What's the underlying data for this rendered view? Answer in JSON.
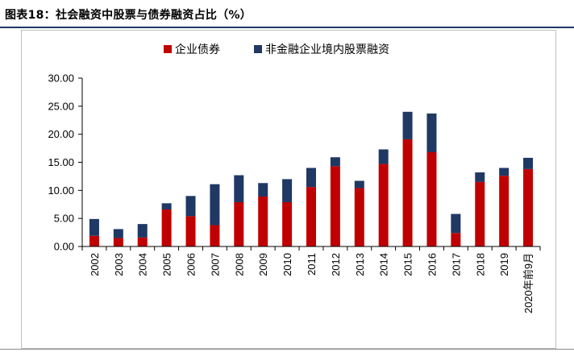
{
  "figure_title": "图表18：社会融资中股票与债券融资占比（%）",
  "colors": {
    "corporate_bonds": "#c00000",
    "equity": "#1f3864",
    "axis": "#000000"
  },
  "chart_data": {
    "type": "bar",
    "stacked": true,
    "categories": [
      "2002",
      "2003",
      "2004",
      "2005",
      "2006",
      "2007",
      "2008",
      "2009",
      "2010",
      "2011",
      "2012",
      "2013",
      "2014",
      "2015",
      "2016",
      "2017",
      "2018",
      "2019",
      "2020年前9月"
    ],
    "series": [
      {
        "name": "企业债券",
        "values": [
          1.9,
          1.5,
          1.6,
          6.6,
          5.4,
          3.8,
          7.9,
          8.9,
          7.9,
          10.6,
          14.3,
          10.4,
          14.7,
          19.1,
          16.8,
          2.4,
          11.5,
          12.6,
          13.8
        ]
      },
      {
        "name": "非金融企业境内股票融资",
        "values": [
          3.0,
          1.6,
          2.4,
          1.1,
          3.6,
          7.3,
          4.8,
          2.4,
          4.1,
          3.4,
          1.6,
          1.3,
          2.6,
          4.9,
          6.9,
          3.4,
          1.7,
          1.4,
          2.0
        ]
      }
    ],
    "ylim": [
      0,
      30
    ],
    "yticks": [
      "0.00",
      "5.00",
      "10.00",
      "15.00",
      "20.00",
      "25.00",
      "30.00"
    ],
    "legend_position": "top",
    "grid": false
  }
}
